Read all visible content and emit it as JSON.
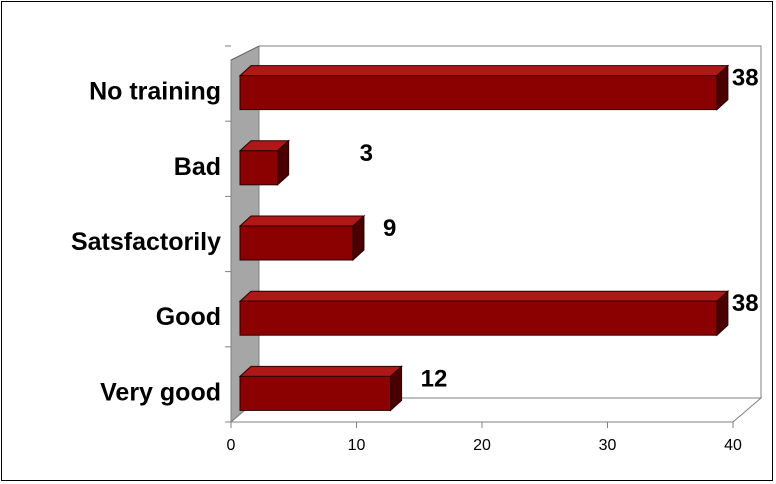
{
  "chart_data": {
    "type": "bar",
    "orientation": "horizontal",
    "style": "3d",
    "categories": [
      "No training",
      "Bad",
      "Satsfactorily",
      "Good",
      "Very good"
    ],
    "values": [
      38,
      3,
      9,
      38,
      12
    ],
    "data_labels": [
      "38",
      "3",
      "9",
      "38",
      "12"
    ],
    "xlim": [
      0,
      40
    ],
    "x_ticks": [
      "0",
      "10",
      "20",
      "30",
      "40"
    ],
    "grid": false,
    "legend": "none",
    "colors": {
      "bar_front": "#8b0000",
      "bar_top": "#b01818",
      "bar_side": "#4a0000",
      "wall": "#a6a6a6",
      "wall_dark": "#7f7f7f"
    }
  }
}
